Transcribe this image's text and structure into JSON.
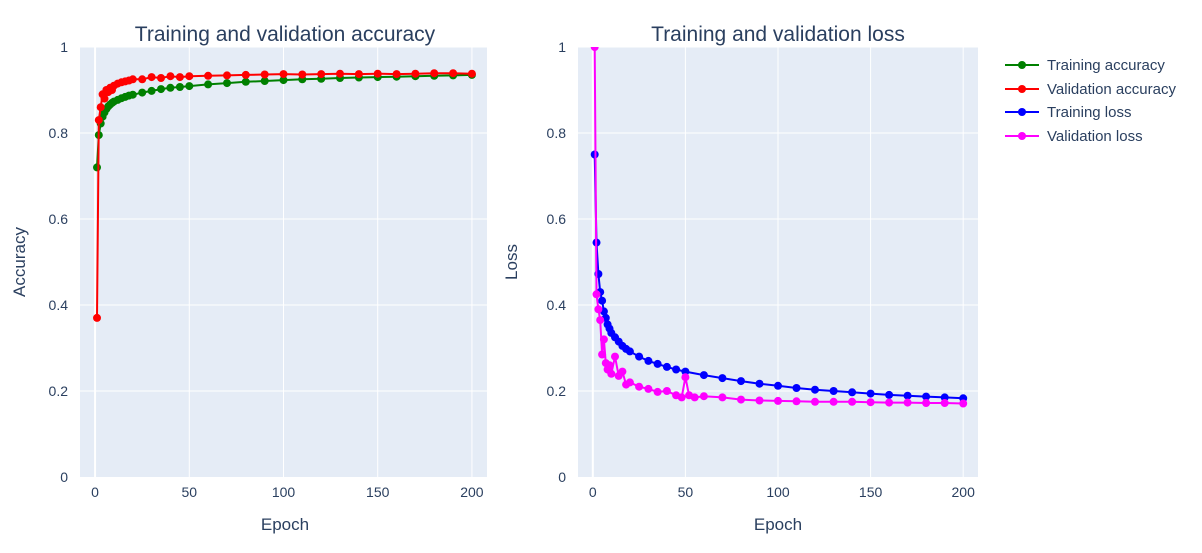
{
  "chart_data": [
    {
      "type": "line",
      "title": "Training and validation accuracy",
      "xlabel": "Epoch",
      "ylabel": "Accuracy",
      "xlim": [
        -8,
        208
      ],
      "ylim": [
        0,
        1
      ],
      "xticks": [
        0,
        50,
        100,
        150,
        200
      ],
      "xtick_labels": [
        "0",
        "50",
        "100",
        "150",
        "200"
      ],
      "yticks": [
        0,
        0.2,
        0.4,
        0.6,
        0.8,
        1
      ],
      "ytick_labels": [
        "0",
        "0.2",
        "0.4",
        "0.6",
        "0.8",
        "1"
      ],
      "grid": true,
      "series": [
        {
          "name": "Training accuracy",
          "color": "#008000",
          "x": [
            1,
            2,
            3,
            4,
            5,
            6,
            7,
            8,
            9,
            10,
            12,
            14,
            16,
            18,
            20,
            25,
            30,
            35,
            40,
            45,
            50,
            60,
            70,
            80,
            90,
            100,
            110,
            120,
            130,
            140,
            150,
            160,
            170,
            180,
            190,
            200
          ],
          "y": [
            0.72,
            0.795,
            0.822,
            0.838,
            0.848,
            0.856,
            0.862,
            0.866,
            0.87,
            0.873,
            0.877,
            0.881,
            0.884,
            0.887,
            0.889,
            0.894,
            0.898,
            0.902,
            0.905,
            0.907,
            0.909,
            0.913,
            0.916,
            0.919,
            0.921,
            0.923,
            0.925,
            0.926,
            0.928,
            0.929,
            0.93,
            0.931,
            0.932,
            0.933,
            0.934,
            0.935
          ]
        },
        {
          "name": "Validation accuracy",
          "color": "#ff0000",
          "x": [
            1,
            2,
            3,
            4,
            5,
            6,
            7,
            8,
            9,
            10,
            12,
            14,
            16,
            18,
            20,
            25,
            30,
            35,
            40,
            45,
            50,
            60,
            70,
            80,
            90,
            100,
            110,
            120,
            130,
            140,
            150,
            160,
            170,
            180,
            190,
            200
          ],
          "y": [
            0.37,
            0.83,
            0.86,
            0.89,
            0.88,
            0.9,
            0.895,
            0.905,
            0.9,
            0.91,
            0.915,
            0.918,
            0.92,
            0.922,
            0.925,
            0.925,
            0.93,
            0.928,
            0.932,
            0.93,
            0.932,
            0.933,
            0.934,
            0.935,
            0.936,
            0.937,
            0.936,
            0.937,
            0.938,
            0.937,
            0.938,
            0.937,
            0.938,
            0.939,
            0.939,
            0.938
          ]
        }
      ]
    },
    {
      "type": "line",
      "title": "Training and validation loss",
      "xlabel": "Epoch",
      "ylabel": "Loss",
      "xlim": [
        -8,
        208
      ],
      "ylim": [
        0,
        1
      ],
      "xticks": [
        0,
        50,
        100,
        150,
        200
      ],
      "xtick_labels": [
        "0",
        "50",
        "100",
        "150",
        "200"
      ],
      "yticks": [
        0,
        0.2,
        0.4,
        0.6,
        0.8,
        1
      ],
      "ytick_labels": [
        "0",
        "0.2",
        "0.4",
        "0.6",
        "0.8",
        "1"
      ],
      "grid": true,
      "series": [
        {
          "name": "Training loss",
          "color": "#0000ff",
          "x": [
            1,
            2,
            3,
            4,
            5,
            6,
            7,
            8,
            9,
            10,
            12,
            14,
            16,
            18,
            20,
            25,
            30,
            35,
            40,
            45,
            50,
            60,
            70,
            80,
            90,
            100,
            110,
            120,
            130,
            140,
            150,
            160,
            170,
            180,
            190,
            200
          ],
          "y": [
            0.75,
            0.545,
            0.472,
            0.43,
            0.41,
            0.385,
            0.37,
            0.355,
            0.345,
            0.335,
            0.325,
            0.315,
            0.305,
            0.298,
            0.292,
            0.28,
            0.27,
            0.263,
            0.256,
            0.25,
            0.245,
            0.237,
            0.23,
            0.223,
            0.217,
            0.212,
            0.207,
            0.203,
            0.2,
            0.197,
            0.194,
            0.191,
            0.189,
            0.187,
            0.185,
            0.183
          ]
        },
        {
          "name": "Validation loss",
          "color": "#ff00ff",
          "x": [
            1,
            2,
            3,
            4,
            5,
            6,
            7,
            8,
            9,
            10,
            12,
            14,
            16,
            18,
            20,
            25,
            30,
            35,
            40,
            45,
            48,
            50,
            52,
            55,
            60,
            70,
            80,
            90,
            100,
            110,
            120,
            130,
            140,
            150,
            160,
            170,
            180,
            190,
            200
          ],
          "y": [
            1.0,
            0.425,
            0.39,
            0.365,
            0.285,
            0.32,
            0.265,
            0.25,
            0.26,
            0.24,
            0.28,
            0.235,
            0.245,
            0.215,
            0.22,
            0.21,
            0.205,
            0.198,
            0.2,
            0.19,
            0.185,
            0.232,
            0.19,
            0.185,
            0.188,
            0.185,
            0.18,
            0.178,
            0.177,
            0.176,
            0.175,
            0.175,
            0.175,
            0.174,
            0.173,
            0.173,
            0.172,
            0.172,
            0.171
          ]
        }
      ]
    }
  ]
}
